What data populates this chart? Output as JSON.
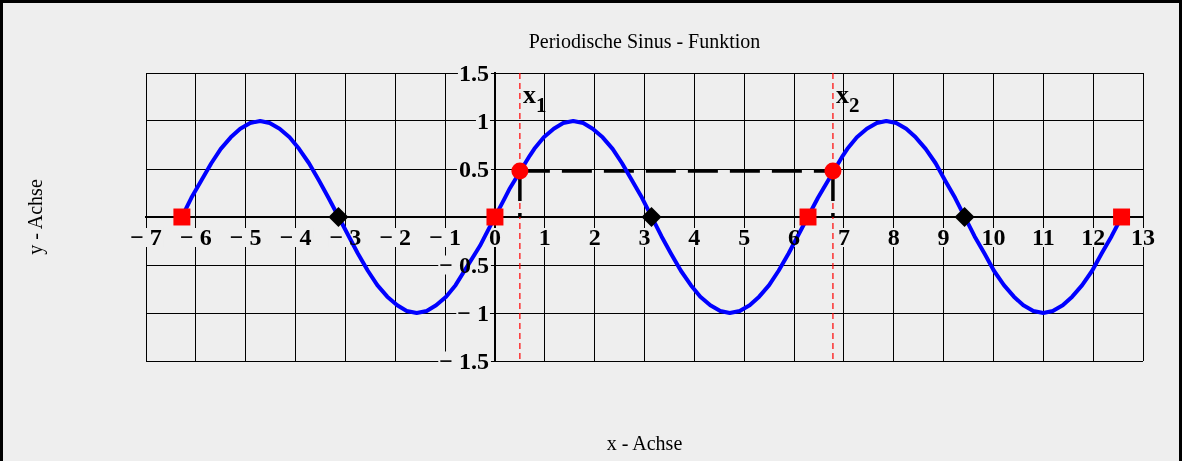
{
  "chart_data": {
    "type": "line",
    "title": "Periodische Sinus - Funktion",
    "xlabel": "x - Achse",
    "ylabel": "y - Achse",
    "xlim": [
      -7,
      13
    ],
    "xticks": [
      {
        "value": -7,
        "label": "− 7"
      },
      {
        "value": -6,
        "label": "− 6"
      },
      {
        "value": -5,
        "label": "− 5"
      },
      {
        "value": -4,
        "label": "− 4"
      },
      {
        "value": -3,
        "label": "− 3"
      },
      {
        "value": -2,
        "label": "− 2"
      },
      {
        "value": -1,
        "label": "− 1"
      },
      0,
      1,
      2,
      3,
      4,
      5,
      6,
      7,
      8,
      9,
      10,
      11,
      12,
      13
    ],
    "ylim": [
      -1.5,
      1.5
    ],
    "yticks": [
      {
        "value": -1.5,
        "label": "− 1.5"
      },
      {
        "value": -1,
        "label": "− 1"
      },
      {
        "value": -0.5,
        "label": "− 0.5"
      },
      0.5,
      1,
      1.5
    ],
    "grid": true,
    "series": [
      {
        "type": "line",
        "color": "#0000ff",
        "marker": "none",
        "line_style": "solid",
        "x": [
          -6.28,
          -6.09,
          -5.89,
          -5.69,
          -5.5,
          -5.3,
          -5.11,
          -4.91,
          -4.71,
          -4.52,
          -4.32,
          -4.12,
          -3.93,
          -3.73,
          -3.53,
          -3.34,
          -2.75,
          -2.55,
          -2.36,
          -2.16,
          -1.96,
          -1.77,
          -1.57,
          -1.37,
          -1.18,
          -0.98,
          -0.79,
          -0.3,
          -0.2,
          0.2,
          0.3,
          0.7,
          0.79,
          0.98,
          1.18,
          1.37,
          1.57,
          1.77,
          1.96,
          2.16,
          2.36,
          2.55,
          2.75,
          2.95,
          3.34,
          3.53,
          3.73,
          3.93,
          4.12,
          4.32,
          4.52,
          4.71,
          4.91,
          5.11,
          5.3,
          5.5,
          5.69,
          5.89,
          6.48,
          6.58,
          6.98,
          7.07,
          7.26,
          7.46,
          7.66,
          7.85,
          8.05,
          8.25,
          8.44,
          8.64,
          8.84,
          9.03,
          9.23,
          9.62,
          9.82,
          10.01,
          10.21,
          10.41,
          10.6,
          10.8,
          11,
          11.19,
          11.39,
          11.58,
          11.78,
          11.98,
          12.17,
          12.37,
          12.57
        ],
        "values": [
          0,
          0.2,
          0.38,
          0.56,
          0.71,
          0.83,
          0.92,
          0.98,
          1,
          0.98,
          0.92,
          0.83,
          0.71,
          0.56,
          0.38,
          0.2,
          -0.38,
          -0.56,
          -0.71,
          -0.83,
          -0.92,
          -0.98,
          -1,
          -0.98,
          -0.92,
          -0.83,
          -0.71,
          -0.3,
          -0.2,
          0.2,
          0.3,
          0.64,
          0.71,
          0.83,
          0.92,
          0.98,
          1,
          0.98,
          0.92,
          0.83,
          0.71,
          0.56,
          0.38,
          0.2,
          -0.2,
          -0.38,
          -0.56,
          -0.71,
          -0.83,
          -0.92,
          -0.98,
          -1,
          -0.98,
          -0.92,
          -0.83,
          -0.71,
          -0.56,
          -0.38,
          0.2,
          0.29,
          0.64,
          0.71,
          0.83,
          0.92,
          0.98,
          1,
          0.98,
          0.92,
          0.83,
          0.71,
          0.56,
          0.38,
          0.2,
          -0.2,
          -0.38,
          -0.56,
          -0.71,
          -0.83,
          -0.92,
          -0.98,
          -1,
          -0.98,
          -0.92,
          -0.83,
          -0.71,
          -0.56,
          -0.38,
          -0.2,
          0
        ]
      },
      {
        "type": "line",
        "color": "#000000",
        "marker": "none",
        "line_style": "dashed",
        "x": [
          0.5,
          6.78
        ],
        "values": [
          0.48,
          0.48
        ]
      },
      {
        "type": "line",
        "color": "#000000",
        "marker": "none",
        "line_style": "dashed",
        "x": [
          0.5,
          0.5
        ],
        "values": [
          0.48,
          0
        ]
      },
      {
        "type": "line",
        "color": "#000000",
        "marker": "none",
        "line_style": "dashed",
        "x": [
          6.78,
          6.78
        ],
        "values": [
          0.48,
          0
        ]
      },
      {
        "type": "scatter",
        "color": "#ff0000",
        "marker": "square",
        "x": [
          -6.28,
          0,
          6.28,
          12.57
        ],
        "values": [
          0,
          0,
          0,
          0
        ]
      },
      {
        "type": "scatter",
        "color": "#000000",
        "marker": "diamond",
        "x": [
          -3.14,
          3.14,
          9.42
        ],
        "values": [
          0,
          0,
          0
        ]
      },
      {
        "type": "scatter",
        "color": "#ff0000",
        "marker": "circle",
        "x": [
          0.5,
          6.78
        ],
        "values": [
          0.48,
          0.48
        ]
      }
    ],
    "ref_lines": [
      {
        "axis": "x",
        "value": 0.5,
        "label": "x$_{1}$",
        "color": "#ff0000",
        "line_style": "dashed"
      },
      {
        "axis": "x",
        "value": 6.78,
        "label": "x$_{2}$",
        "color": "#ff0000",
        "line_style": "dashed"
      }
    ]
  }
}
